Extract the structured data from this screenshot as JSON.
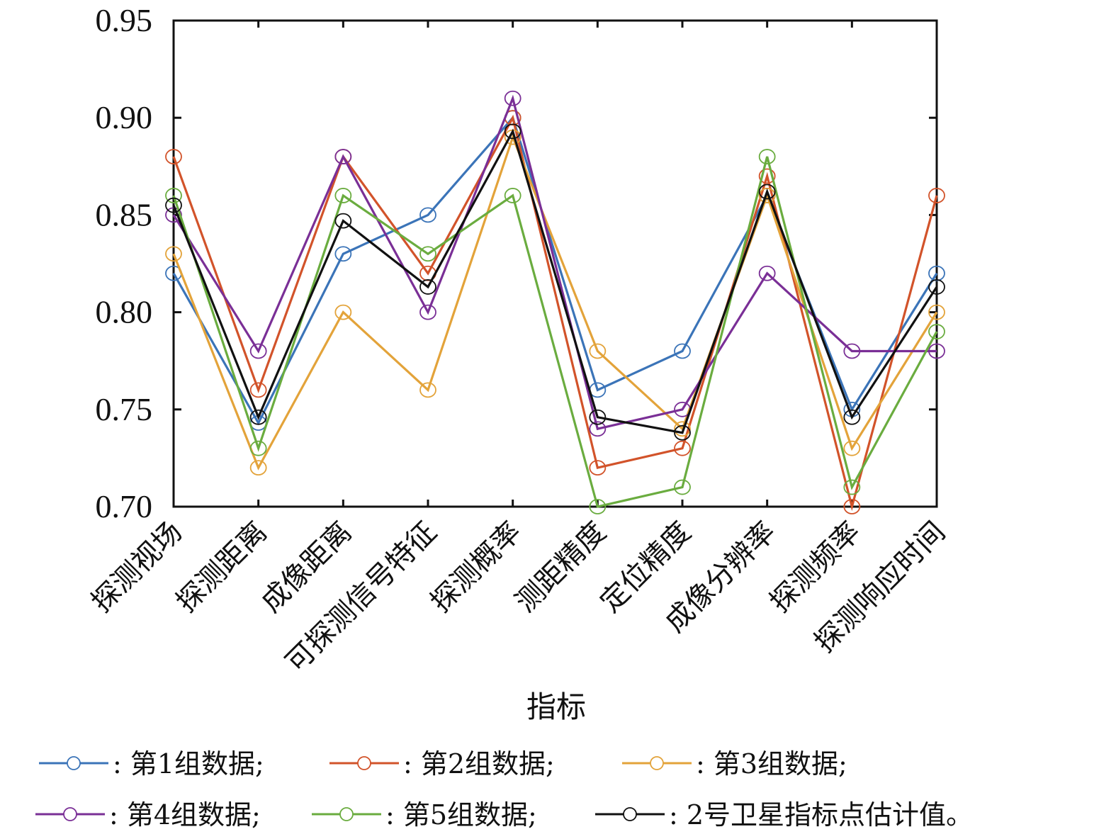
{
  "chart_data": {
    "type": "line",
    "title": "",
    "xlabel": "指标",
    "ylabel": "",
    "ylim": [
      0.7,
      0.95
    ],
    "yticks": [
      "0.70",
      "0.75",
      "0.80",
      "0.85",
      "0.90",
      "0.95"
    ],
    "ytick_values": [
      0.7,
      0.75,
      0.8,
      0.85,
      0.9,
      0.95
    ],
    "grid": false,
    "legend_position": "bottom",
    "categories": [
      "探测视场",
      "探测距离",
      "成像距离",
      "可探测信号特征",
      "探测概率",
      "测距精度",
      "定位精度",
      "成像分辨率",
      "探测频率",
      "探测响应时间"
    ],
    "series": [
      {
        "name": "第1组数据",
        "legend_label": ": 第1组数据;",
        "color": "#3b74b8",
        "values": [
          0.82,
          0.743,
          0.83,
          0.85,
          0.9,
          0.76,
          0.78,
          0.86,
          0.75,
          0.82
        ]
      },
      {
        "name": "第2组数据",
        "legend_label": ": 第2组数据;",
        "color": "#d2532a",
        "values": [
          0.88,
          0.76,
          0.88,
          0.82,
          0.9,
          0.72,
          0.73,
          0.87,
          0.7,
          0.86
        ]
      },
      {
        "name": "第3组数据",
        "legend_label": ": 第3组数据;",
        "color": "#e3a33a",
        "values": [
          0.83,
          0.72,
          0.8,
          0.76,
          0.89,
          0.78,
          0.74,
          0.86,
          0.73,
          0.8
        ]
      },
      {
        "name": "第4组数据",
        "legend_label": ": 第4组数据;",
        "color": "#7a2f96",
        "values": [
          0.85,
          0.78,
          0.88,
          0.8,
          0.91,
          0.74,
          0.75,
          0.82,
          0.78,
          0.78
        ]
      },
      {
        "name": "第5组数据",
        "legend_label": ": 第5组数据;",
        "color": "#6aac3f",
        "values": [
          0.86,
          0.73,
          0.86,
          0.83,
          0.86,
          0.7,
          0.71,
          0.88,
          0.71,
          0.79
        ]
      },
      {
        "name": "2号卫星指标点估计值",
        "legend_label": ": 2号卫星指标点估计值。",
        "color": "#111111",
        "values": [
          0.855,
          0.746,
          0.847,
          0.813,
          0.893,
          0.746,
          0.738,
          0.862,
          0.746,
          0.813
        ]
      }
    ]
  }
}
